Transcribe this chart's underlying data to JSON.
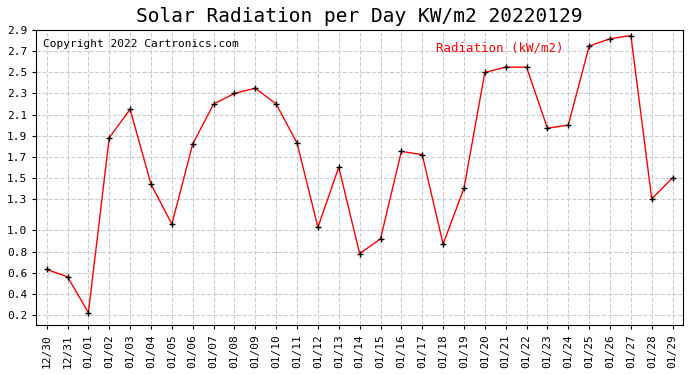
{
  "title": "Solar Radiation per Day KW/m2 20220129",
  "copyright_text": "Copyright 2022 Cartronics.com",
  "legend_label": "Radiation (kW/m2)",
  "x_labels": [
    "12/30",
    "12/31",
    "01/01",
    "01/02",
    "01/03",
    "01/04",
    "01/05",
    "01/06",
    "01/07",
    "01/08",
    "01/09",
    "01/10",
    "01/11",
    "01/12",
    "01/13",
    "01/14",
    "01/15",
    "01/16",
    "01/17",
    "01/18",
    "01/19",
    "01/20",
    "01/21",
    "01/22",
    "01/23",
    "01/24",
    "01/25",
    "01/26",
    "01/27",
    "01/28",
    "01/29"
  ],
  "y_values": [
    0.63,
    0.56,
    0.22,
    1.88,
    2.15,
    1.44,
    1.06,
    1.82,
    2.2,
    2.3,
    2.35,
    2.2,
    1.83,
    1.03,
    1.6,
    0.78,
    0.92,
    1.75,
    1.72,
    0.87,
    1.4,
    2.5,
    2.55,
    2.55,
    1.97,
    2.0,
    2.75,
    2.82,
    2.85,
    1.3,
    1.5
  ],
  "y_min": 0.1,
  "y_max": 2.9,
  "y_tick_vals": [
    0.2,
    0.4,
    0.6,
    0.8,
    1.0,
    1.3,
    1.5,
    1.7,
    1.9,
    2.1,
    2.3,
    2.5,
    2.7,
    2.9
  ],
  "line_color": "red",
  "marker_color": "black",
  "marker_style": "+",
  "grid_color": "#cccccc",
  "bg_color": "white",
  "title_fontsize": 14,
  "label_fontsize": 8,
  "copyright_fontsize": 8,
  "legend_fontsize": 9
}
